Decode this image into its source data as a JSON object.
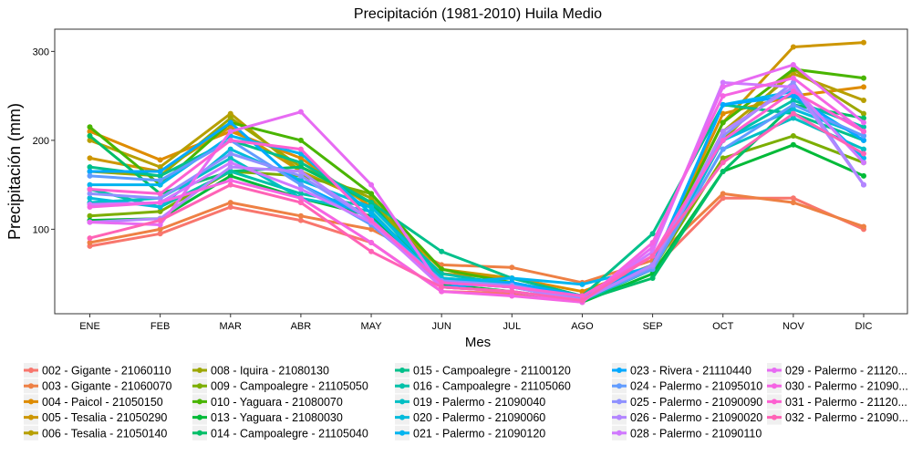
{
  "chart_data": {
    "type": "line",
    "title": "Precipitación (1981-2010)  Huila Medio",
    "xlabel": "Mes",
    "ylabel": "Precipitación (mm)",
    "categories": [
      "ENE",
      "FEB",
      "MAR",
      "ABR",
      "MAY",
      "JUN",
      "JUL",
      "AGO",
      "SEP",
      "OCT",
      "NOV",
      "DIC"
    ],
    "yticks": [
      100,
      200,
      300
    ],
    "ylim": [
      5,
      325
    ],
    "grid": false,
    "legend_position": "bottom",
    "series": [
      {
        "name": "002 - Gigante - 21060110",
        "color": "#F8766D",
        "values": [
          81,
          95,
          125,
          110,
          85,
          30,
          28,
          20,
          55,
          135,
          135,
          100
        ]
      },
      {
        "name": "003 - Gigante - 21060070",
        "color": "#EE8044",
        "values": [
          85,
          100,
          130,
          115,
          100,
          60,
          57,
          40,
          65,
          140,
          130,
          103
        ]
      },
      {
        "name": "004 - Paicol - 21050150",
        "color": "#DE8C00",
        "values": [
          210,
          178,
          210,
          180,
          125,
          50,
          45,
          30,
          60,
          230,
          250,
          260
        ]
      },
      {
        "name": "005 - Tesalia - 21050290",
        "color": "#CD9600",
        "values": [
          180,
          165,
          215,
          165,
          130,
          55,
          45,
          25,
          60,
          220,
          305,
          310
        ]
      },
      {
        "name": "006 - Tesalia - 21050140",
        "color": "#B79F00",
        "values": [
          200,
          170,
          230,
          165,
          130,
          45,
          38,
          25,
          58,
          210,
          275,
          245
        ]
      },
      {
        "name": "008 - Iquira - 21080130",
        "color": "#9DA700",
        "values": [
          165,
          160,
          225,
          170,
          135,
          40,
          35,
          22,
          55,
          200,
          280,
          230
        ]
      },
      {
        "name": "009 - Campoalegre - 21105050",
        "color": "#7CAE00",
        "values": [
          115,
          120,
          165,
          160,
          140,
          45,
          40,
          20,
          55,
          180,
          205,
          175
        ]
      },
      {
        "name": "010 - Yaguara - 21080070",
        "color": "#49B500",
        "values": [
          215,
          150,
          220,
          200,
          140,
          55,
          40,
          22,
          60,
          220,
          280,
          270
        ]
      },
      {
        "name": "013 - Yaguara - 21080030",
        "color": "#00BA38",
        "values": [
          110,
          112,
          160,
          135,
          115,
          38,
          30,
          18,
          50,
          165,
          195,
          160
        ]
      },
      {
        "name": "014 - Campoalegre - 21105040",
        "color": "#00BE67",
        "values": [
          205,
          140,
          165,
          170,
          130,
          35,
          30,
          20,
          45,
          165,
          240,
          225
        ]
      },
      {
        "name": "015 - Campoalegre - 21100120",
        "color": "#00C08B",
        "values": [
          170,
          160,
          200,
          175,
          130,
          75,
          45,
          25,
          95,
          240,
          230,
          200
        ]
      },
      {
        "name": "016 - Campoalegre - 21105060",
        "color": "#00C1A9",
        "values": [
          145,
          125,
          165,
          140,
          125,
          50,
          38,
          25,
          60,
          200,
          245,
          215
        ]
      },
      {
        "name": "019 - Palermo - 21090040",
        "color": "#00BFC4",
        "values": [
          130,
          135,
          180,
          135,
          120,
          40,
          35,
          20,
          55,
          190,
          225,
          190
        ]
      },
      {
        "name": "020 - Palermo - 21090060",
        "color": "#00BBDC",
        "values": [
          135,
          125,
          190,
          155,
          125,
          45,
          40,
          25,
          55,
          200,
          235,
          205
        ]
      },
      {
        "name": "021 - Palermo - 21090120",
        "color": "#00B4EF",
        "values": [
          150,
          150,
          205,
          185,
          118,
          40,
          45,
          38,
          58,
          240,
          255,
          180
        ]
      },
      {
        "name": "023 - Rivera - 21110440",
        "color": "#00A9FF",
        "values": [
          165,
          165,
          220,
          150,
          112,
          35,
          40,
          25,
          60,
          240,
          250,
          200
        ]
      },
      {
        "name": "024 - Palermo - 21095010",
        "color": "#619CFF",
        "values": [
          160,
          155,
          200,
          150,
          105,
          40,
          35,
          22,
          55,
          190,
          240,
          205
        ]
      },
      {
        "name": "025 - Palermo - 21090090",
        "color": "#8F91FF",
        "values": [
          140,
          135,
          185,
          160,
          110,
          42,
          37,
          22,
          58,
          205,
          265,
          150
        ]
      },
      {
        "name": "026 - Palermo - 21090020",
        "color": "#B385FF",
        "values": [
          108,
          112,
          170,
          165,
          110,
          40,
          35,
          20,
          60,
          210,
          260,
          150
        ]
      },
      {
        "name": "028 - Palermo - 21090110",
        "color": "#D078FF",
        "values": [
          128,
          130,
          175,
          145,
          108,
          35,
          30,
          20,
          75,
          265,
          260,
          175
        ]
      },
      {
        "name": "029 - Palermo - 21120...",
        "color": "#E76BF3",
        "values": [
          108,
          105,
          210,
          232,
          150,
          35,
          30,
          18,
          80,
          260,
          285,
          220
        ]
      },
      {
        "name": "030 - Palermo - 21090...",
        "color": "#F564E3",
        "values": [
          125,
          130,
          155,
          135,
          85,
          30,
          25,
          18,
          85,
          250,
          270,
          210
        ]
      },
      {
        "name": "031 - Palermo - 21120...",
        "color": "#FD61D1",
        "values": [
          145,
          140,
          200,
          190,
          110,
          40,
          35,
          25,
          70,
          200,
          255,
          210
        ]
      },
      {
        "name": "032 - Palermo - 21090...",
        "color": "#FF63B6",
        "values": [
          90,
          110,
          150,
          130,
          75,
          35,
          30,
          20,
          70,
          175,
          230,
          185
        ]
      }
    ]
  }
}
